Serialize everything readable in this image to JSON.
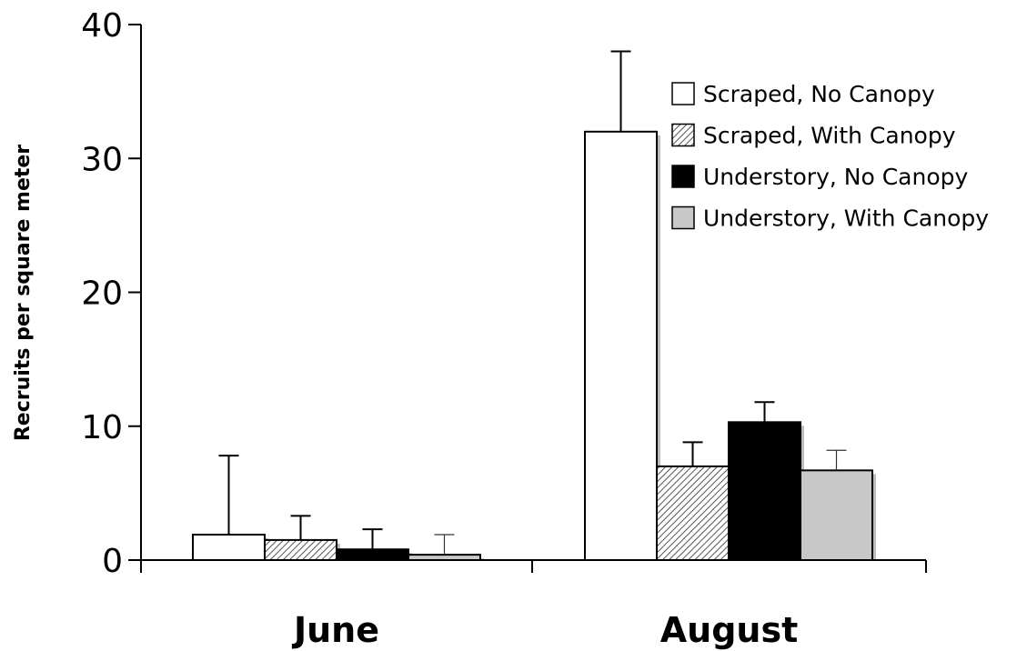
{
  "chart_data": {
    "type": "bar",
    "categories": [
      "June",
      "August"
    ],
    "ylabel": "Recruits per square meter",
    "ylim": [
      0,
      40
    ],
    "yticks": [
      0,
      10,
      20,
      30,
      40
    ],
    "legend_position": "top-right",
    "series": [
      {
        "name": "Scraped, No Canopy",
        "values": [
          1.9,
          32.0
        ],
        "errors": [
          5.9,
          6.0
        ],
        "fill": "#ffffff",
        "pattern": "none"
      },
      {
        "name": "Scraped, With Canopy",
        "values": [
          1.5,
          7.0
        ],
        "errors": [
          1.8,
          1.8
        ],
        "fill": "#ffffff",
        "pattern": "diagonal-hatch"
      },
      {
        "name": "Understory, No Canopy",
        "values": [
          0.8,
          10.3
        ],
        "errors": [
          1.5,
          1.5
        ],
        "fill": "#000000",
        "pattern": "none"
      },
      {
        "name": "Understory, With Canopy",
        "values": [
          0.4,
          6.7
        ],
        "errors": [
          1.5,
          1.5
        ],
        "fill": "#c8c8c8",
        "pattern": "none"
      }
    ]
  }
}
